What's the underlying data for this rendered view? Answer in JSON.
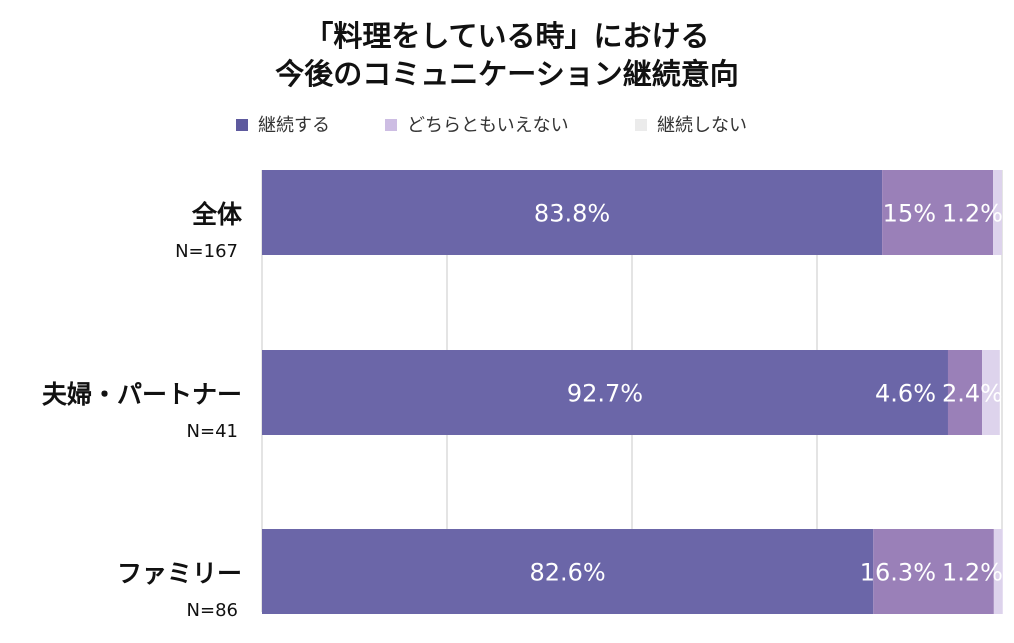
{
  "chart_data": {
    "type": "bar",
    "orientation": "horizontal",
    "stacked": true,
    "title_lines": [
      "「料理をしている時」における",
      "今後のコミュニケーション継続意向"
    ],
    "categories": [
      "全体",
      "夫婦・パートナー",
      "ファミリー"
    ],
    "category_counts": [
      "N=167",
      "N=41",
      "N=86"
    ],
    "series": [
      {
        "name": "継続する",
        "color": "#6b66a8",
        "values": [
          83.8,
          92.7,
          82.6
        ],
        "labels": [
          "83.8%",
          "92.7%",
          "82.6%"
        ]
      },
      {
        "name": "どちらともいえない",
        "color": "#9a80b8",
        "values": [
          15,
          4.6,
          16.3
        ],
        "labels": [
          "15%",
          "4.6%",
          "16.3%"
        ]
      },
      {
        "name": "継続しない",
        "color": "#ddd3ec",
        "values": [
          1.2,
          2.4,
          1.2
        ],
        "labels": [
          "1.2%",
          "2.4%",
          "1.2%"
        ]
      }
    ],
    "legend_colors": [
      "#5e5a9e",
      "#cdbde3",
      "#ebebeb"
    ],
    "xlim": [
      0,
      100
    ],
    "grid": true,
    "legend_position": "top"
  }
}
